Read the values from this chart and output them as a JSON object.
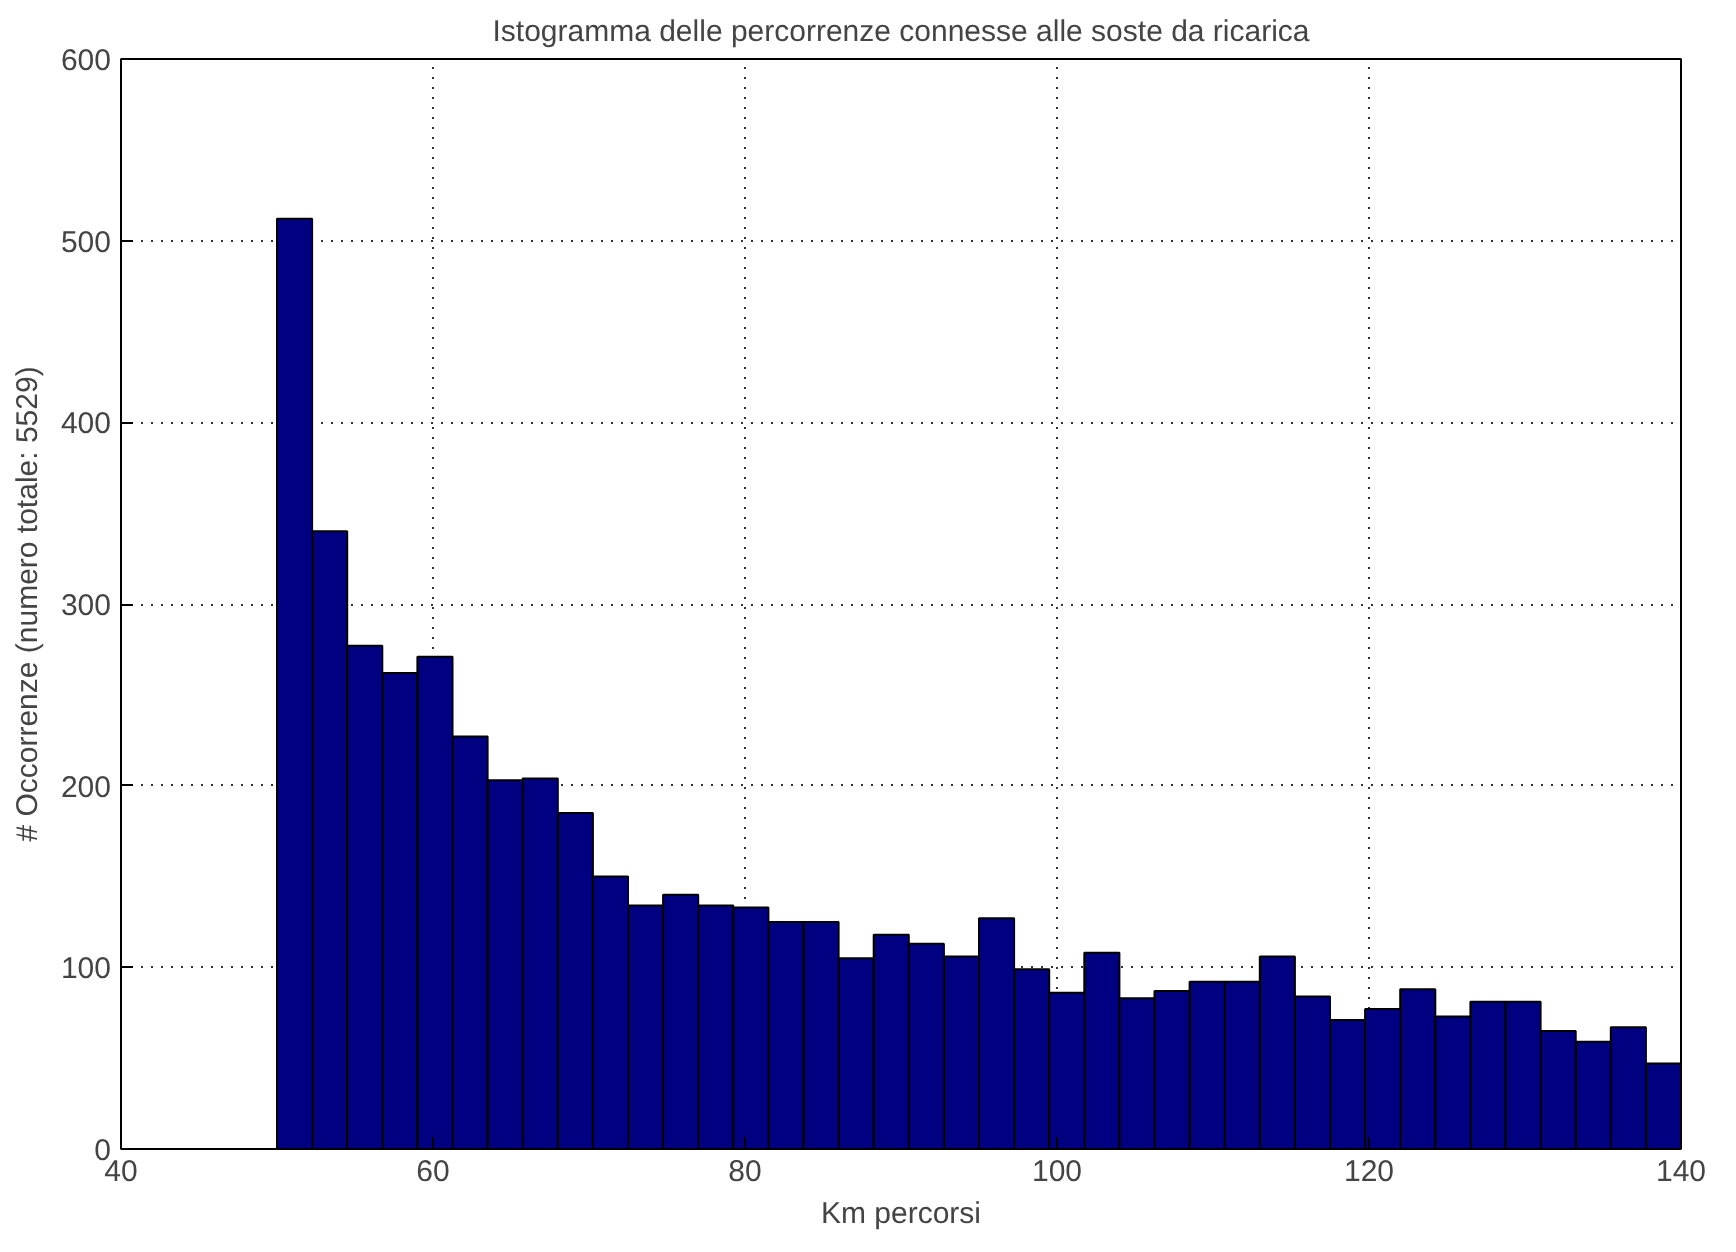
{
  "chart_data": {
    "type": "histogram",
    "title": "Istogramma delle percorrenze connesse alle soste da ricarica",
    "xlabel": "Km percorsi",
    "ylabel": "# Occorrenze (numero totale: 5529)",
    "bins": [
      50,
      52.25,
      54.5,
      56.75,
      59,
      61.25,
      63.5,
      65.75,
      68,
      70.25,
      72.5,
      74.75,
      77,
      79.25,
      81.5,
      83.75,
      86,
      88.25,
      90.5,
      92.75,
      95,
      97.25,
      99.5,
      101.75,
      104,
      106.25,
      108.5,
      110.75,
      113,
      115.25,
      117.5,
      119.75,
      122,
      124.25,
      126.5,
      128.75,
      131,
      133.25,
      135.5,
      137.75,
      140
    ],
    "values": [
      512,
      340,
      277,
      262,
      271,
      227,
      203,
      204,
      185,
      150,
      134,
      140,
      134,
      133,
      125,
      125,
      105,
      118,
      113,
      106,
      127,
      99,
      86,
      108,
      83,
      87,
      92,
      92,
      106,
      84,
      71,
      77,
      88,
      73,
      81,
      81,
      65,
      59,
      67,
      47
    ],
    "color": "#000080",
    "xlim": [
      40,
      140
    ],
    "ylim": [
      0,
      600
    ],
    "xticks": [
      40,
      60,
      80,
      100,
      120,
      140
    ],
    "yticks": [
      0,
      100,
      200,
      300,
      400,
      500,
      600
    ],
    "grid": true
  }
}
